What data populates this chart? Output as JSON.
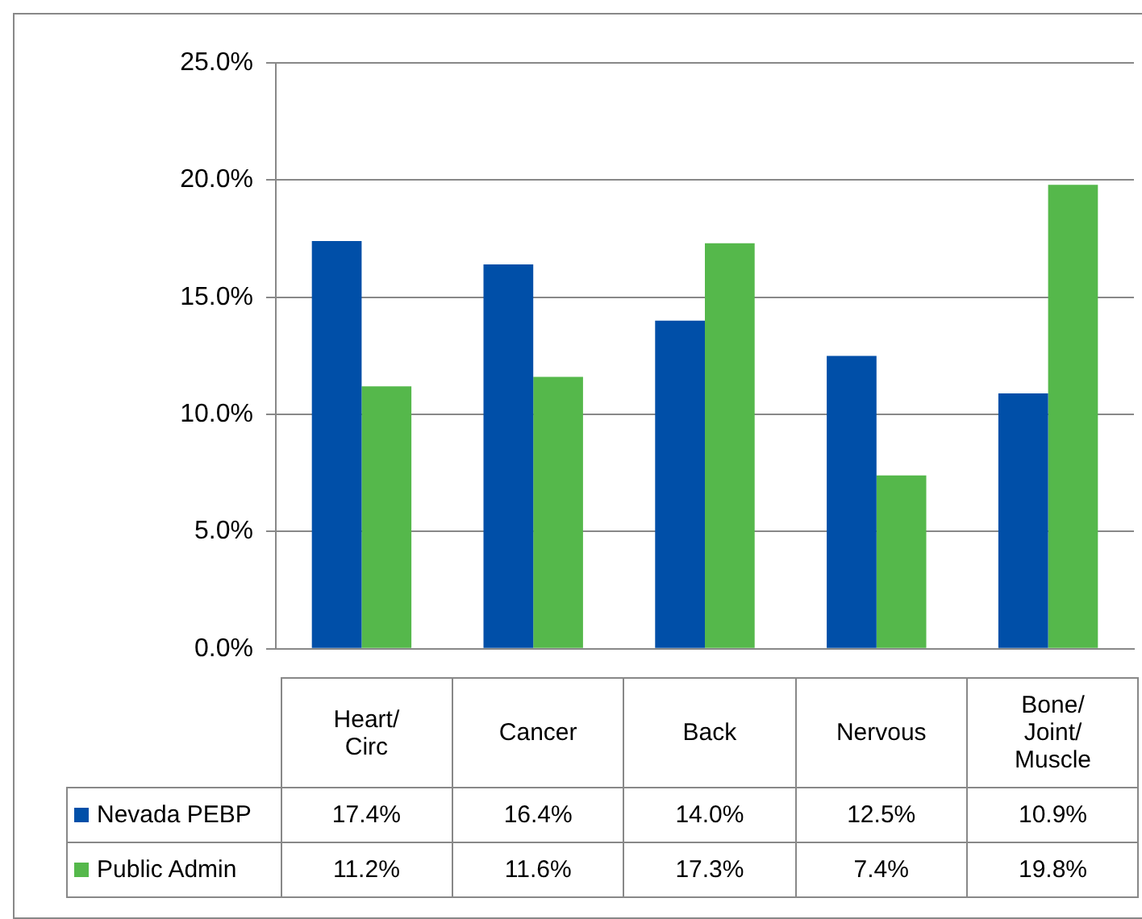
{
  "chart_data": {
    "type": "bar",
    "categories": [
      "Heart/Circ",
      "Cancer",
      "Back",
      "Nervous",
      "Bone/Joint/Muscle"
    ],
    "series": [
      {
        "name": "Nevada PEBP",
        "color": "#004fa8",
        "values": [
          17.4,
          16.4,
          14.0,
          12.5,
          10.9
        ],
        "value_labels": [
          "17.4%",
          "16.4%",
          "14.0%",
          "12.5%",
          "10.9%"
        ]
      },
      {
        "name": "Public Admin",
        "color": "#55b84b",
        "values": [
          11.2,
          11.6,
          17.3,
          7.4,
          19.8
        ],
        "value_labels": [
          "11.2%",
          "11.6%",
          "17.3%",
          "7.4%",
          "19.8%"
        ]
      }
    ],
    "ylim": [
      0,
      25
    ],
    "yticks": [
      {
        "value": 0,
        "label": "0.0%"
      },
      {
        "value": 5,
        "label": "5.0%"
      },
      {
        "value": 10,
        "label": "10.0%"
      },
      {
        "value": 15,
        "label": "15.0%"
      },
      {
        "value": 20,
        "label": "20.0%"
      },
      {
        "value": 25,
        "label": "25.0%"
      }
    ],
    "grid": "y",
    "legend": "bottom"
  }
}
